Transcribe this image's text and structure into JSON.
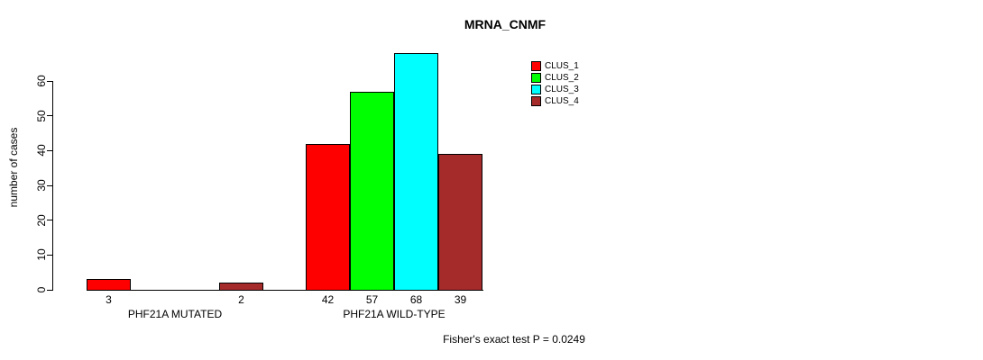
{
  "title": "MRNA_CNMF",
  "footer": "Fisher's exact test P = 0.0249",
  "colors": {
    "background": "#ffffff",
    "axis": "#000000",
    "text": "#000000",
    "bar_border": "#000000"
  },
  "chart_data": {
    "type": "bar",
    "title": "MRNA_CNMF",
    "xlabel": "",
    "ylabel": "number of cases",
    "ylim": [
      0,
      68
    ],
    "yticks": [
      0,
      10,
      20,
      30,
      40,
      50,
      60
    ],
    "grid": false,
    "categories": [
      "PHF21A MUTATED",
      "PHF21A WILD-TYPE"
    ],
    "series": [
      {
        "name": "CLUS_1",
        "color": "#ff0000",
        "values": [
          3,
          42
        ]
      },
      {
        "name": "CLUS_2",
        "color": "#00ff00",
        "values": [
          0,
          57
        ]
      },
      {
        "name": "CLUS_3",
        "color": "#00ffff",
        "values": [
          0,
          68
        ]
      },
      {
        "name": "CLUS_4",
        "color": "#a52a2a",
        "values": [
          2,
          39
        ]
      }
    ],
    "bar_value_labels": [
      [
        3,
        null,
        null,
        2
      ],
      [
        42,
        57,
        68,
        39
      ]
    ],
    "legend": {
      "position": "top-right",
      "entries": [
        "CLUS_1",
        "CLUS_2",
        "CLUS_3",
        "CLUS_4"
      ]
    },
    "annotation": "Fisher's exact test P = 0.0249"
  }
}
